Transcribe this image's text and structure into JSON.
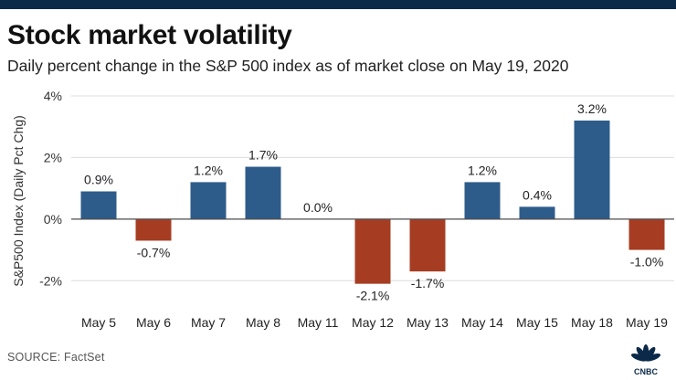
{
  "header": {
    "title": "Stock market volatility",
    "subtitle": "Daily percent change in the S&P 500 index as of market close on May 19, 2020"
  },
  "footer": {
    "source": "SOURCE: FactSet",
    "logo_text": "CNBC"
  },
  "colors": {
    "positive": "#2e5c8a",
    "negative": "#a63d22",
    "grid": "#dddddd",
    "baseline": "#4d4d4d",
    "top_bar": "#0b2a4a"
  },
  "chart_data": {
    "type": "bar",
    "title": "",
    "xlabel": "",
    "ylabel": "S&P500 Index (Daily Pct Chg)",
    "categories": [
      "May 5",
      "May 6",
      "May 7",
      "May 8",
      "May 11",
      "May 12",
      "May 13",
      "May 14",
      "May 15",
      "May 18",
      "May 19"
    ],
    "values": [
      0.9,
      -0.7,
      1.2,
      1.7,
      0.0,
      -2.1,
      -1.7,
      1.2,
      0.4,
      3.2,
      -1.0
    ],
    "data_labels": [
      "0.9%",
      "-0.7%",
      "1.2%",
      "1.7%",
      "0.0%",
      "-2.1%",
      "-1.7%",
      "1.2%",
      "0.4%",
      "3.2%",
      "-1.0%"
    ],
    "yticks": [
      4,
      2,
      0,
      -2
    ],
    "ytick_labels": [
      "4%",
      "2%",
      "0%",
      "-2%"
    ],
    "ylim": [
      -3,
      4
    ],
    "grid": true,
    "legend": "none"
  }
}
